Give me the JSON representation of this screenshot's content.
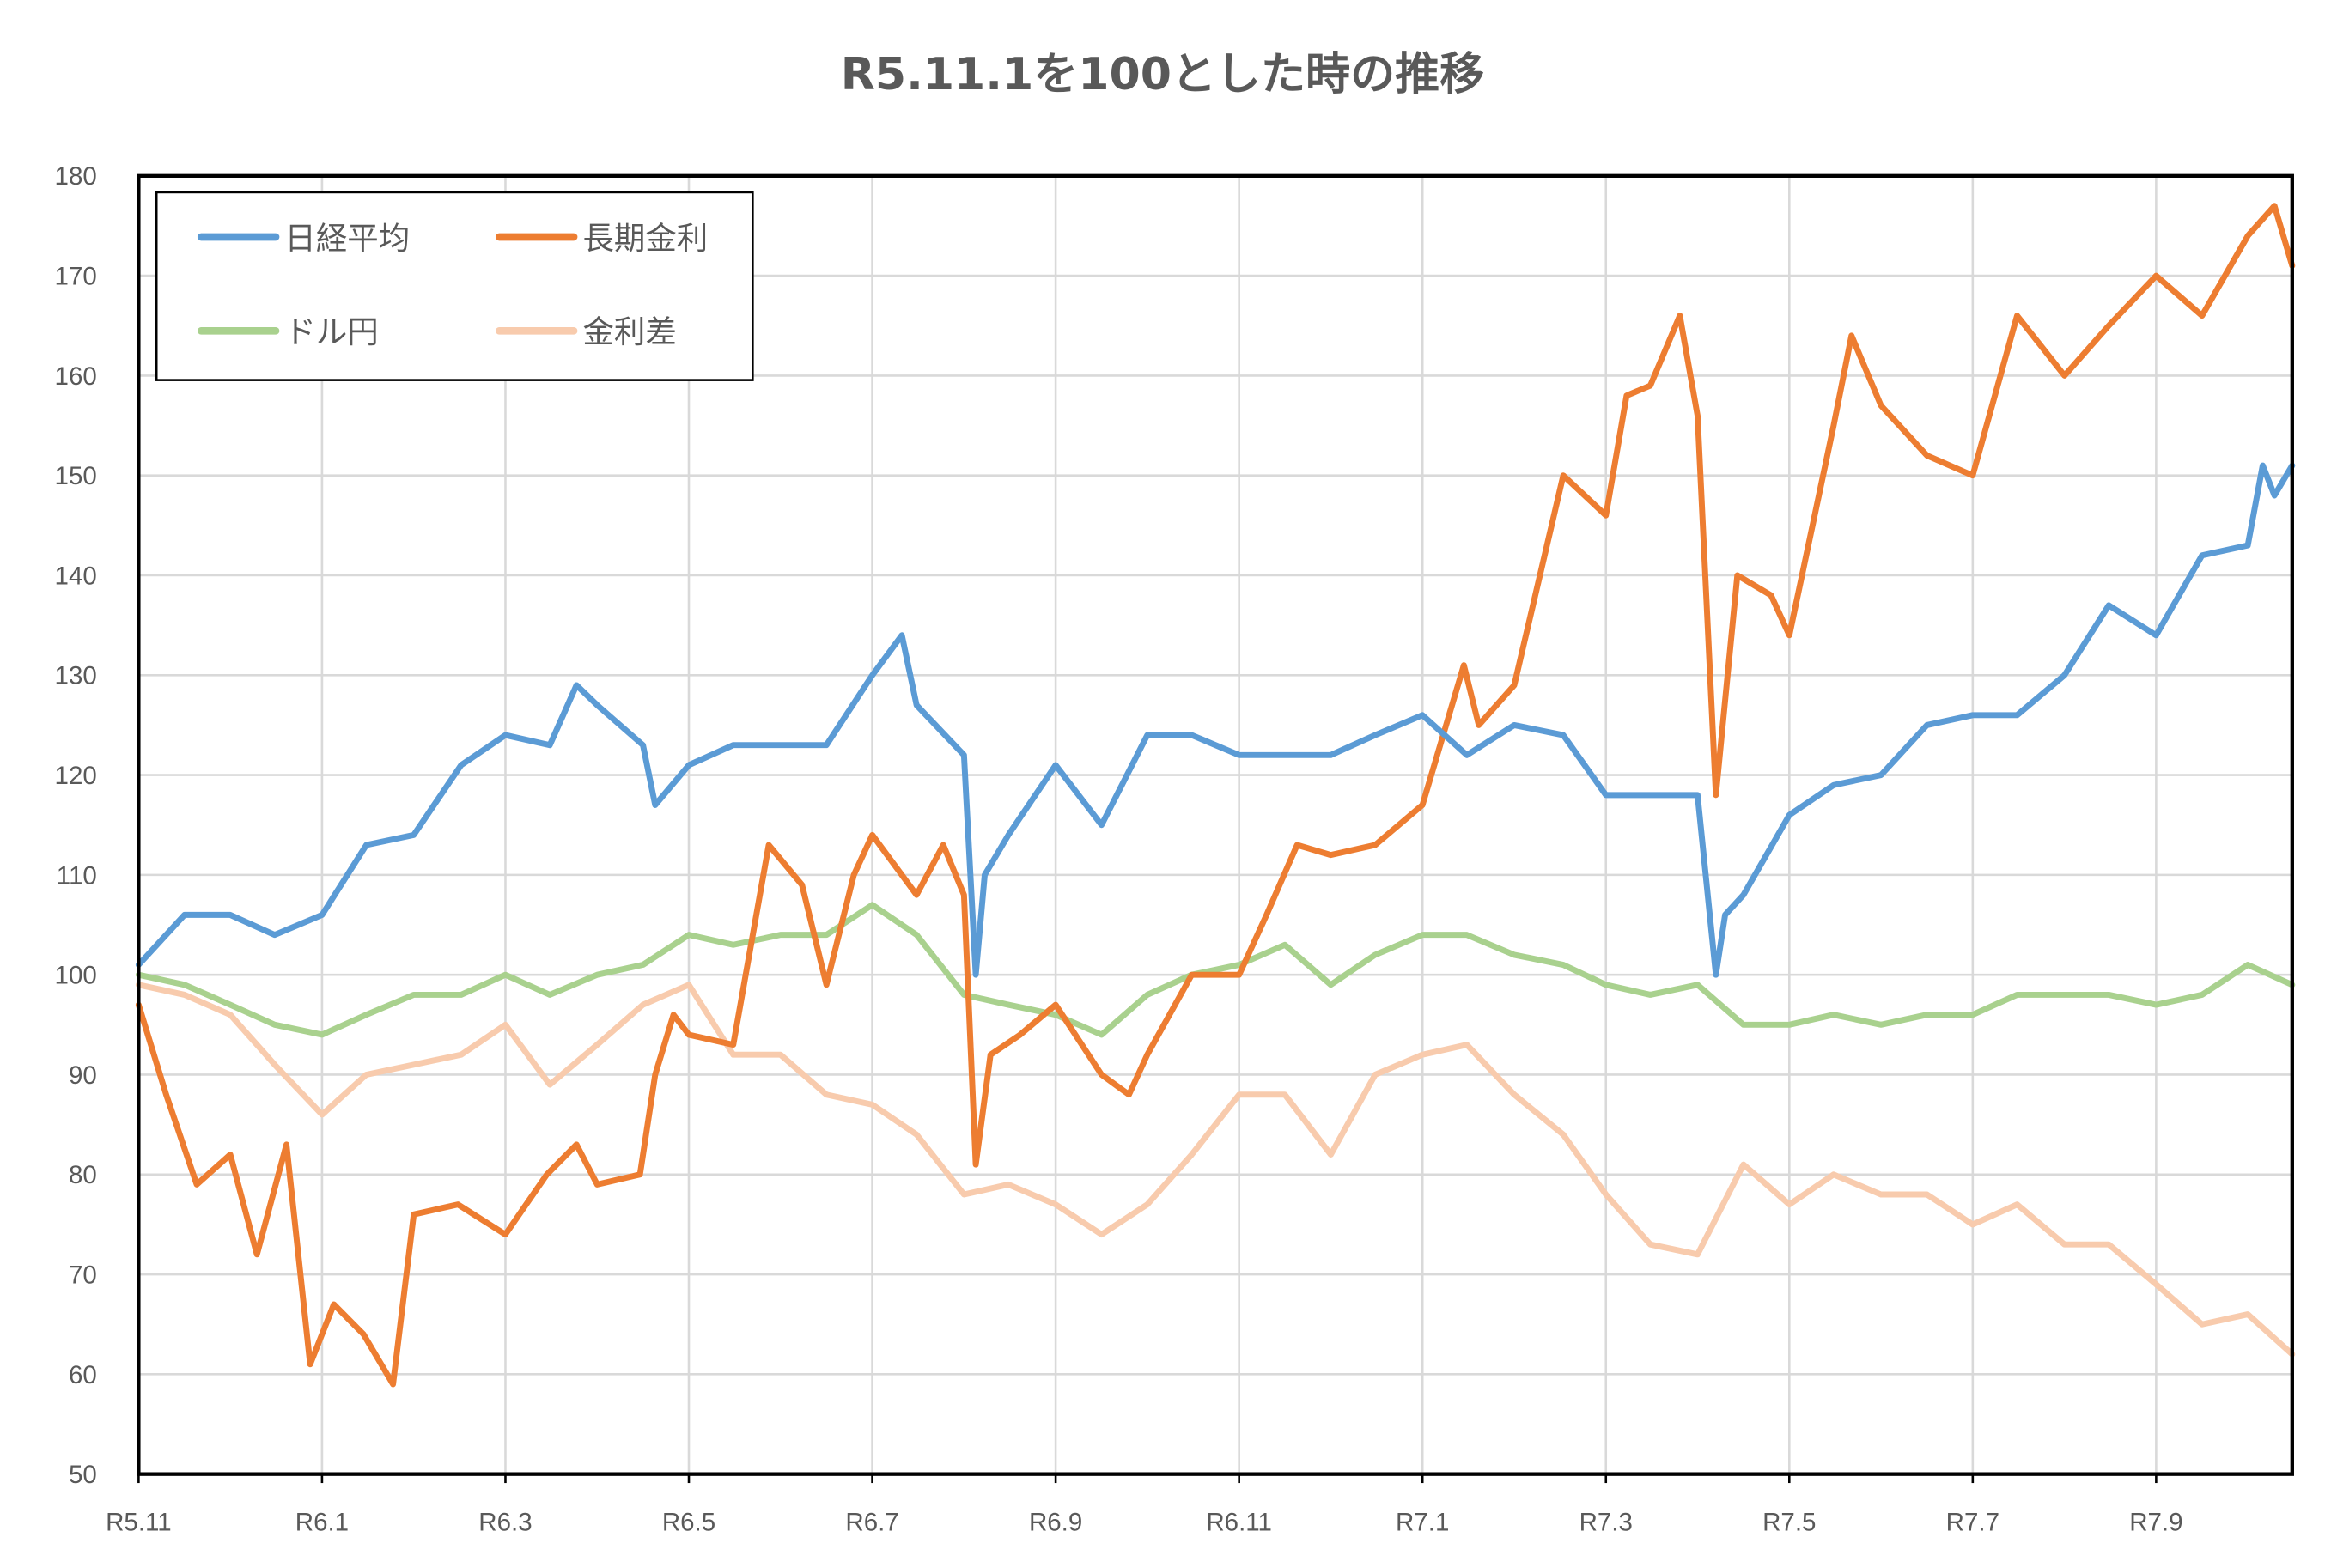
{
  "chart_data": {
    "type": "line",
    "title": "R5.11.1を100とした時の推移",
    "xlabel": "",
    "ylabel": "",
    "ylim": [
      50,
      180
    ],
    "yticks": [
      50,
      60,
      70,
      80,
      90,
      100,
      110,
      120,
      130,
      140,
      150,
      160,
      170,
      180
    ],
    "xlim": [
      "2023-11-01",
      "2025-10-16"
    ],
    "xticks": [
      {
        "date": "2023-11-01",
        "label": "R5.11"
      },
      {
        "date": "2024-01-01",
        "label": "R6.1"
      },
      {
        "date": "2024-03-01",
        "label": "R6.3"
      },
      {
        "date": "2024-05-01",
        "label": "R6.5"
      },
      {
        "date": "2024-07-01",
        "label": "R6.7"
      },
      {
        "date": "2024-09-01",
        "label": "R6.9"
      },
      {
        "date": "2024-11-01",
        "label": "R6.11"
      },
      {
        "date": "2025-01-01",
        "label": "R7.1"
      },
      {
        "date": "2025-03-01",
        "label": "R7.3"
      },
      {
        "date": "2025-05-01",
        "label": "R7.5"
      },
      {
        "date": "2025-07-01",
        "label": "R7.7"
      },
      {
        "date": "2025-09-01",
        "label": "R7.9"
      }
    ],
    "grid": true,
    "legend_position": "top-left",
    "series": [
      {
        "name": "日経平均",
        "color": "#5B9BD5",
        "points": [
          [
            "2023-11-01",
            101
          ],
          [
            "2023-11-16",
            106
          ],
          [
            "2023-12-01",
            106
          ],
          [
            "2023-12-16",
            104
          ],
          [
            "2024-01-01",
            106
          ],
          [
            "2024-01-16",
            113
          ],
          [
            "2024-02-01",
            114
          ],
          [
            "2024-02-16",
            121
          ],
          [
            "2024-03-01",
            124
          ],
          [
            "2024-03-16",
            123
          ],
          [
            "2024-03-25",
            129
          ],
          [
            "2024-04-01",
            127
          ],
          [
            "2024-04-16",
            123
          ],
          [
            "2024-04-20",
            117
          ],
          [
            "2024-05-01",
            121
          ],
          [
            "2024-05-16",
            123
          ],
          [
            "2024-06-01",
            123
          ],
          [
            "2024-06-16",
            123
          ],
          [
            "2024-07-01",
            130
          ],
          [
            "2024-07-11",
            134
          ],
          [
            "2024-07-16",
            127
          ],
          [
            "2024-08-01",
            122
          ],
          [
            "2024-08-05",
            100
          ],
          [
            "2024-08-08",
            110
          ],
          [
            "2024-08-16",
            114
          ],
          [
            "2024-09-01",
            121
          ],
          [
            "2024-09-16",
            115
          ],
          [
            "2024-10-01",
            124
          ],
          [
            "2024-10-16",
            124
          ],
          [
            "2024-11-01",
            122
          ],
          [
            "2024-11-16",
            122
          ],
          [
            "2024-12-01",
            122
          ],
          [
            "2024-12-16",
            124
          ],
          [
            "2025-01-01",
            126
          ],
          [
            "2025-01-16",
            122
          ],
          [
            "2025-02-01",
            125
          ],
          [
            "2025-02-16",
            124
          ],
          [
            "2025-03-01",
            118
          ],
          [
            "2025-03-16",
            118
          ],
          [
            "2025-04-01",
            118
          ],
          [
            "2025-04-07",
            100
          ],
          [
            "2025-04-10",
            106
          ],
          [
            "2025-04-16",
            108
          ],
          [
            "2025-05-01",
            116
          ],
          [
            "2025-05-16",
            119
          ],
          [
            "2025-06-01",
            120
          ],
          [
            "2025-06-16",
            125
          ],
          [
            "2025-07-01",
            126
          ],
          [
            "2025-07-16",
            126
          ],
          [
            "2025-08-01",
            130
          ],
          [
            "2025-08-16",
            137
          ],
          [
            "2025-09-01",
            134
          ],
          [
            "2025-09-16",
            142
          ],
          [
            "2025-10-01",
            143
          ],
          [
            "2025-10-06",
            151
          ],
          [
            "2025-10-10",
            148
          ],
          [
            "2025-10-16",
            151
          ]
        ]
      },
      {
        "name": "長期金利",
        "color": "#ED7D31",
        "points": [
          [
            "2023-11-01",
            97
          ],
          [
            "2023-11-10",
            88
          ],
          [
            "2023-11-20",
            79
          ],
          [
            "2023-12-01",
            82
          ],
          [
            "2023-12-10",
            72
          ],
          [
            "2023-12-20",
            83
          ],
          [
            "2023-12-28",
            61
          ],
          [
            "2024-01-05",
            67
          ],
          [
            "2024-01-15",
            64
          ],
          [
            "2024-01-25",
            59
          ],
          [
            "2024-02-01",
            76
          ],
          [
            "2024-02-15",
            77
          ],
          [
            "2024-03-01",
            74
          ],
          [
            "2024-03-15",
            80
          ],
          [
            "2024-03-25",
            83
          ],
          [
            "2024-04-01",
            79
          ],
          [
            "2024-04-15",
            80
          ],
          [
            "2024-04-20",
            90
          ],
          [
            "2024-04-26",
            96
          ],
          [
            "2024-05-01",
            94
          ],
          [
            "2024-05-16",
            93
          ],
          [
            "2024-05-28",
            113
          ],
          [
            "2024-06-08",
            109
          ],
          [
            "2024-06-16",
            99
          ],
          [
            "2024-06-25",
            110
          ],
          [
            "2024-07-01",
            114
          ],
          [
            "2024-07-16",
            108
          ],
          [
            "2024-07-25",
            113
          ],
          [
            "2024-08-01",
            108
          ],
          [
            "2024-08-05",
            81
          ],
          [
            "2024-08-10",
            92
          ],
          [
            "2024-08-20",
            94
          ],
          [
            "2024-09-01",
            97
          ],
          [
            "2024-09-16",
            90
          ],
          [
            "2024-09-25",
            88
          ],
          [
            "2024-10-01",
            92
          ],
          [
            "2024-10-16",
            100
          ],
          [
            "2024-11-01",
            100
          ],
          [
            "2024-11-10",
            106
          ],
          [
            "2024-11-20",
            113
          ],
          [
            "2024-12-01",
            112
          ],
          [
            "2024-12-16",
            113
          ],
          [
            "2025-01-01",
            117
          ],
          [
            "2025-01-15",
            131
          ],
          [
            "2025-01-20",
            125
          ],
          [
            "2025-02-01",
            129
          ],
          [
            "2025-02-16",
            150
          ],
          [
            "2025-03-01",
            146
          ],
          [
            "2025-03-08",
            158
          ],
          [
            "2025-03-16",
            159
          ],
          [
            "2025-03-26",
            166
          ],
          [
            "2025-04-01",
            156
          ],
          [
            "2025-04-07",
            118
          ],
          [
            "2025-04-14",
            140
          ],
          [
            "2025-04-25",
            138
          ],
          [
            "2025-05-01",
            134
          ],
          [
            "2025-05-16",
            155
          ],
          [
            "2025-05-22",
            164
          ],
          [
            "2025-06-01",
            157
          ],
          [
            "2025-06-16",
            152
          ],
          [
            "2025-07-01",
            150
          ],
          [
            "2025-07-16",
            166
          ],
          [
            "2025-08-01",
            160
          ],
          [
            "2025-08-16",
            165
          ],
          [
            "2025-09-01",
            170
          ],
          [
            "2025-09-16",
            166
          ],
          [
            "2025-10-01",
            174
          ],
          [
            "2025-10-10",
            177
          ],
          [
            "2025-10-16",
            171
          ]
        ]
      },
      {
        "name": "ドル円",
        "color": "#A9D18E",
        "points": [
          [
            "2023-11-01",
            100
          ],
          [
            "2023-11-16",
            99
          ],
          [
            "2023-12-01",
            97
          ],
          [
            "2023-12-16",
            95
          ],
          [
            "2024-01-01",
            94
          ],
          [
            "2024-01-16",
            96
          ],
          [
            "2024-02-01",
            98
          ],
          [
            "2024-02-16",
            98
          ],
          [
            "2024-03-01",
            100
          ],
          [
            "2024-03-16",
            98
          ],
          [
            "2024-04-01",
            100
          ],
          [
            "2024-04-16",
            101
          ],
          [
            "2024-05-01",
            104
          ],
          [
            "2024-05-16",
            103
          ],
          [
            "2024-06-01",
            104
          ],
          [
            "2024-06-16",
            104
          ],
          [
            "2024-07-01",
            107
          ],
          [
            "2024-07-16",
            104
          ],
          [
            "2024-08-01",
            98
          ],
          [
            "2024-08-16",
            97
          ],
          [
            "2024-09-01",
            96
          ],
          [
            "2024-09-16",
            94
          ],
          [
            "2024-10-01",
            98
          ],
          [
            "2024-10-16",
            100
          ],
          [
            "2024-11-01",
            101
          ],
          [
            "2024-11-16",
            103
          ],
          [
            "2024-12-01",
            99
          ],
          [
            "2024-12-16",
            102
          ],
          [
            "2025-01-01",
            104
          ],
          [
            "2025-01-16",
            104
          ],
          [
            "2025-02-01",
            102
          ],
          [
            "2025-02-16",
            101
          ],
          [
            "2025-03-01",
            99
          ],
          [
            "2025-03-16",
            98
          ],
          [
            "2025-04-01",
            99
          ],
          [
            "2025-04-16",
            95
          ],
          [
            "2025-05-01",
            95
          ],
          [
            "2025-05-16",
            96
          ],
          [
            "2025-06-01",
            95
          ],
          [
            "2025-06-16",
            96
          ],
          [
            "2025-07-01",
            96
          ],
          [
            "2025-07-16",
            98
          ],
          [
            "2025-08-01",
            98
          ],
          [
            "2025-08-16",
            98
          ],
          [
            "2025-09-01",
            97
          ],
          [
            "2025-09-16",
            98
          ],
          [
            "2025-10-01",
            101
          ],
          [
            "2025-10-16",
            99
          ]
        ]
      },
      {
        "name": "金利差",
        "color": "#F8CBAD",
        "points": [
          [
            "2023-11-01",
            99
          ],
          [
            "2023-11-16",
            98
          ],
          [
            "2023-12-01",
            96
          ],
          [
            "2023-12-16",
            91
          ],
          [
            "2024-01-01",
            86
          ],
          [
            "2024-01-16",
            90
          ],
          [
            "2024-02-01",
            91
          ],
          [
            "2024-02-16",
            92
          ],
          [
            "2024-03-01",
            95
          ],
          [
            "2024-03-16",
            89
          ],
          [
            "2024-04-01",
            93
          ],
          [
            "2024-04-16",
            97
          ],
          [
            "2024-05-01",
            99
          ],
          [
            "2024-05-16",
            92
          ],
          [
            "2024-06-01",
            92
          ],
          [
            "2024-06-16",
            88
          ],
          [
            "2024-07-01",
            87
          ],
          [
            "2024-07-16",
            84
          ],
          [
            "2024-08-01",
            78
          ],
          [
            "2024-08-16",
            79
          ],
          [
            "2024-09-01",
            77
          ],
          [
            "2024-09-16",
            74
          ],
          [
            "2024-10-01",
            77
          ],
          [
            "2024-10-16",
            82
          ],
          [
            "2024-11-01",
            88
          ],
          [
            "2024-11-16",
            88
          ],
          [
            "2024-12-01",
            82
          ],
          [
            "2024-12-16",
            90
          ],
          [
            "2025-01-01",
            92
          ],
          [
            "2025-01-16",
            93
          ],
          [
            "2025-02-01",
            88
          ],
          [
            "2025-02-16",
            84
          ],
          [
            "2025-03-01",
            78
          ],
          [
            "2025-03-16",
            73
          ],
          [
            "2025-04-01",
            72
          ],
          [
            "2025-04-16",
            81
          ],
          [
            "2025-05-01",
            77
          ],
          [
            "2025-05-16",
            80
          ],
          [
            "2025-06-01",
            78
          ],
          [
            "2025-06-16",
            78
          ],
          [
            "2025-07-01",
            75
          ],
          [
            "2025-07-16",
            77
          ],
          [
            "2025-08-01",
            73
          ],
          [
            "2025-08-16",
            73
          ],
          [
            "2025-09-01",
            69
          ],
          [
            "2025-09-16",
            65
          ],
          [
            "2025-10-01",
            66
          ],
          [
            "2025-10-16",
            62
          ]
        ]
      }
    ]
  }
}
